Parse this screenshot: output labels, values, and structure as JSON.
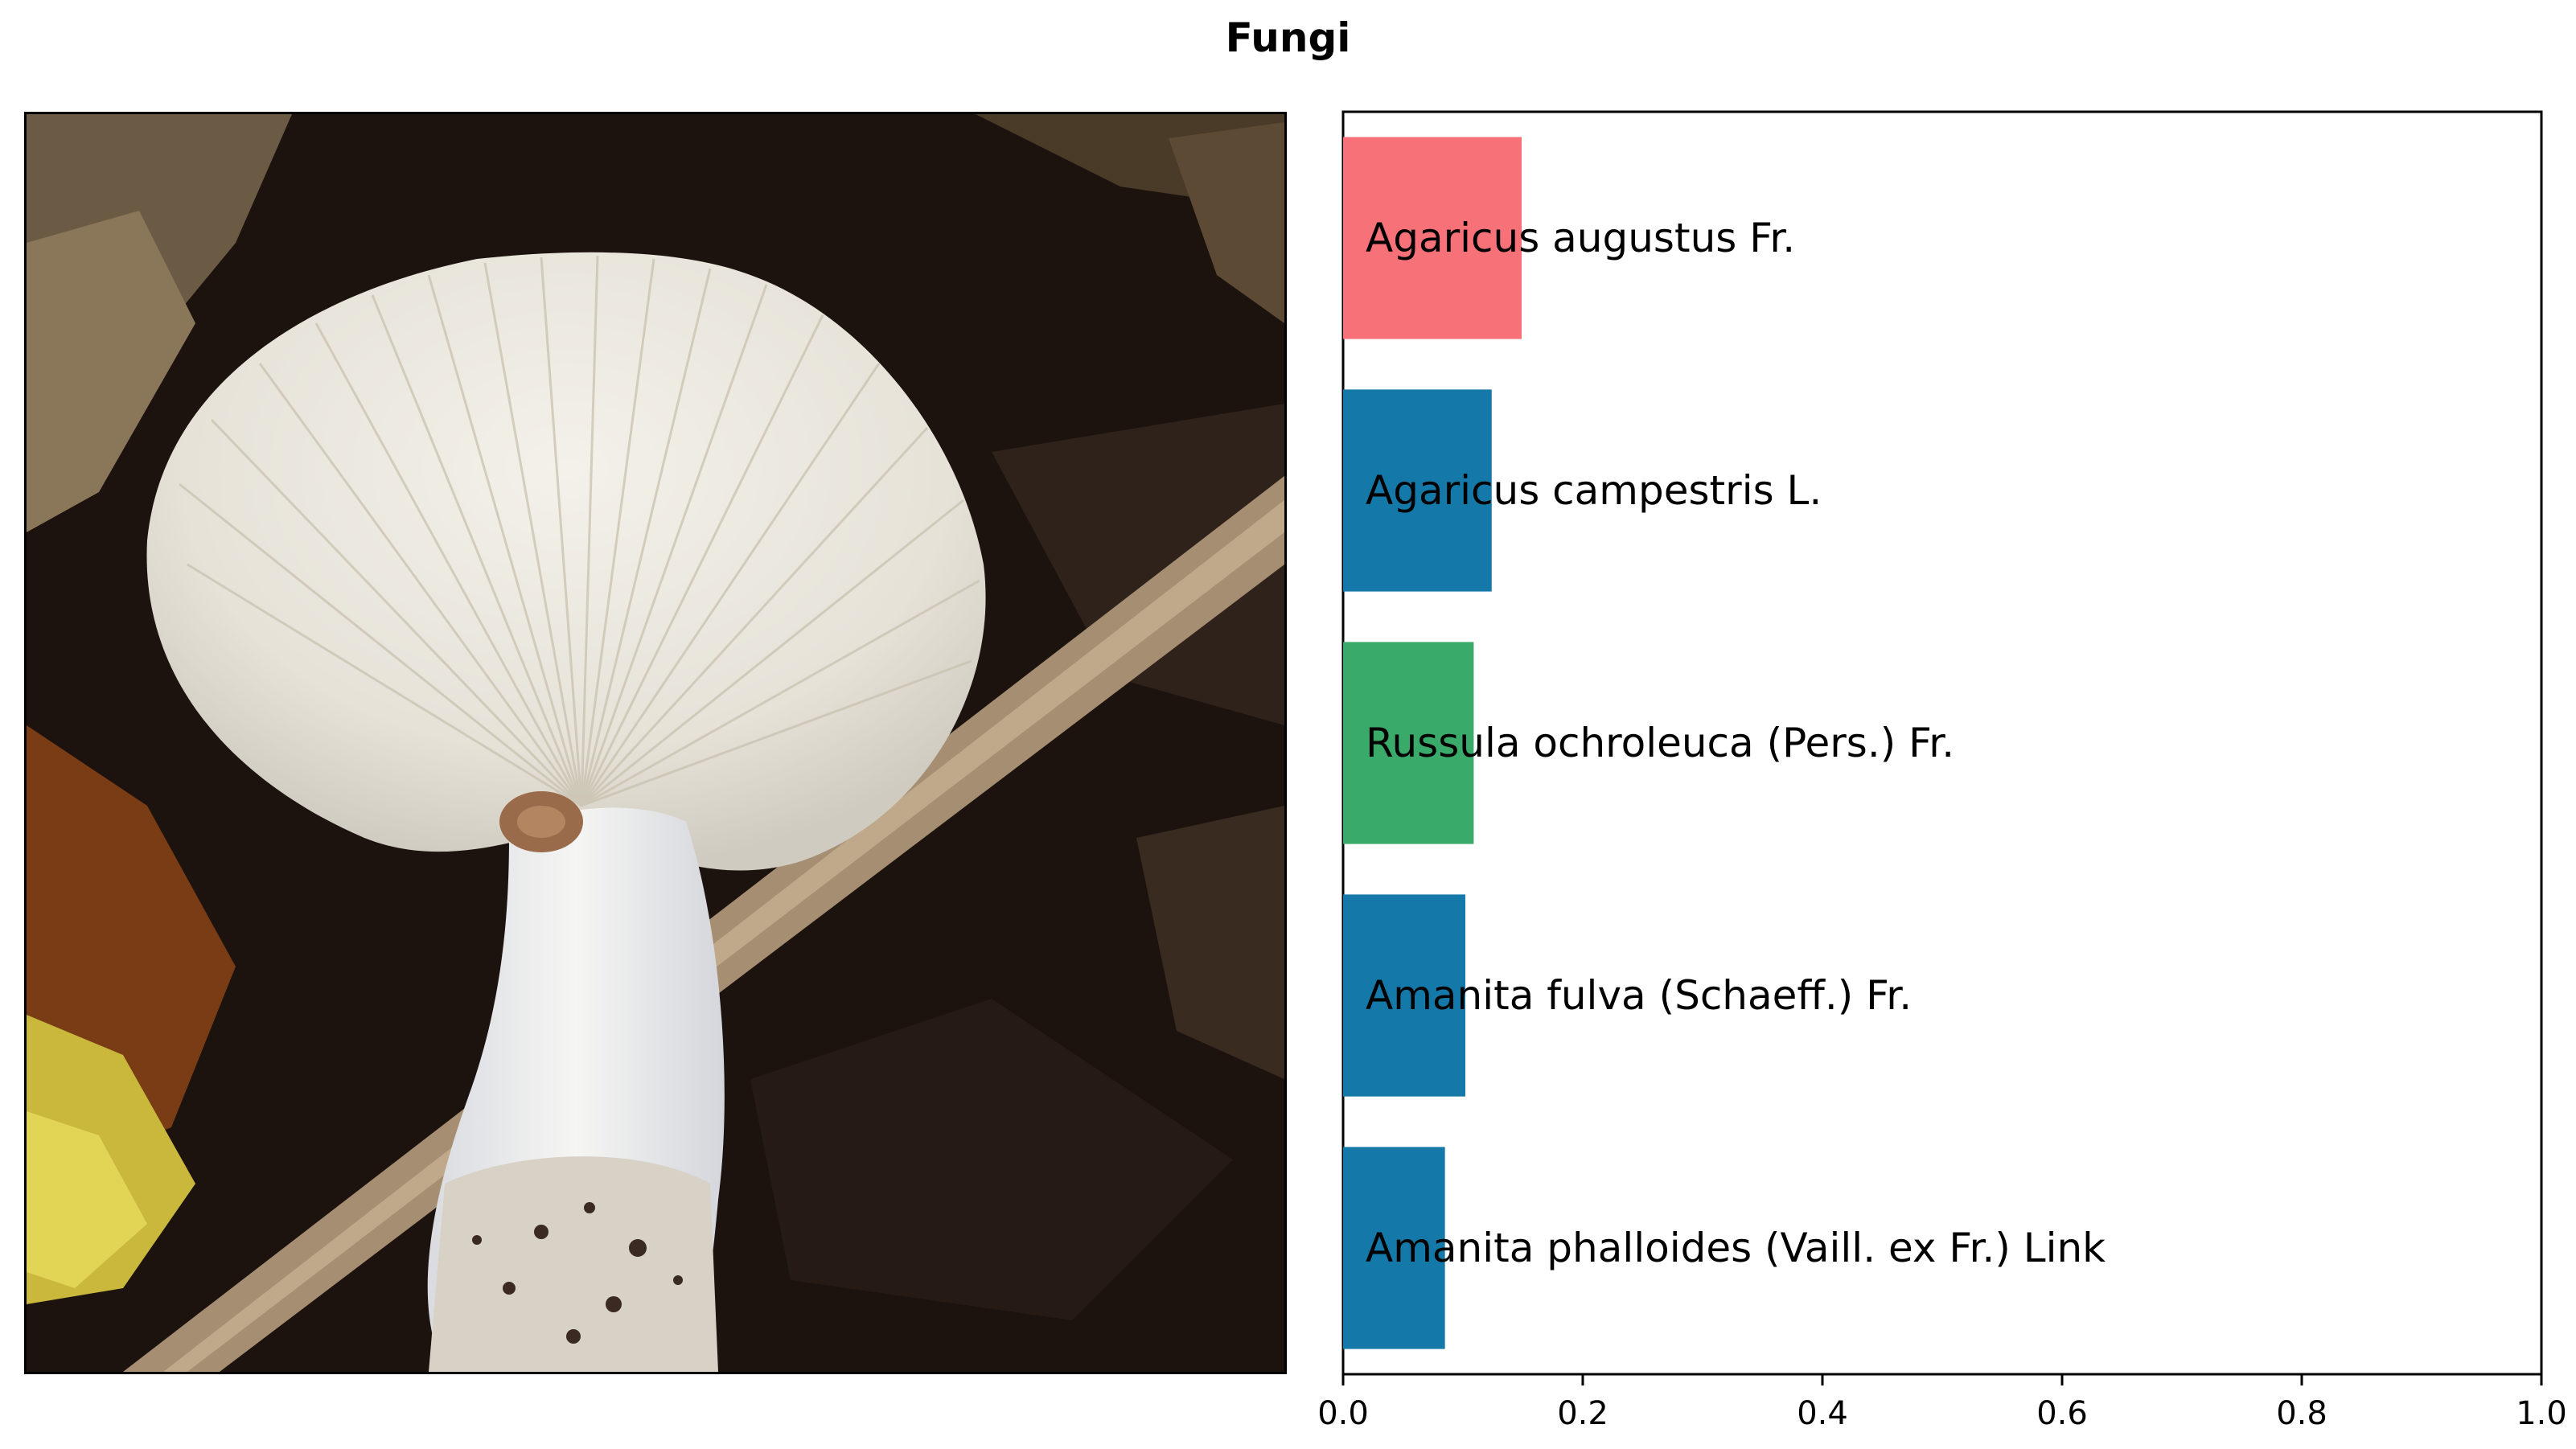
{
  "title": "Fungi",
  "photo": {
    "subject": "mushroom-photo",
    "colors": {
      "background": "#1a120e",
      "cap": "#eeece6",
      "stem": "#f0f0ee",
      "stick": "#a08a70",
      "leaf": "#d8c34a"
    }
  },
  "chart_data": {
    "type": "bar",
    "orientation": "horizontal",
    "categories": [
      "Agaricus augustus Fr.",
      "Agaricus campestris L.",
      "Russula ochroleuca (Pers.) Fr.",
      "Amanita fulva (Schaeff.) Fr.",
      "Amanita phalloides (Vaill. ex Fr.) Link"
    ],
    "values": [
      0.149,
      0.124,
      0.109,
      0.102,
      0.085
    ],
    "colors": [
      "#f77178",
      "#1479a8",
      "#3aaa6a",
      "#1479a8",
      "#1479a8"
    ],
    "xlim": [
      0,
      1.0
    ],
    "xticks": [
      "0.0",
      "0.2",
      "0.4",
      "0.6",
      "0.8",
      "1.0"
    ],
    "xlabel": "",
    "ylabel": "",
    "grid": false
  }
}
